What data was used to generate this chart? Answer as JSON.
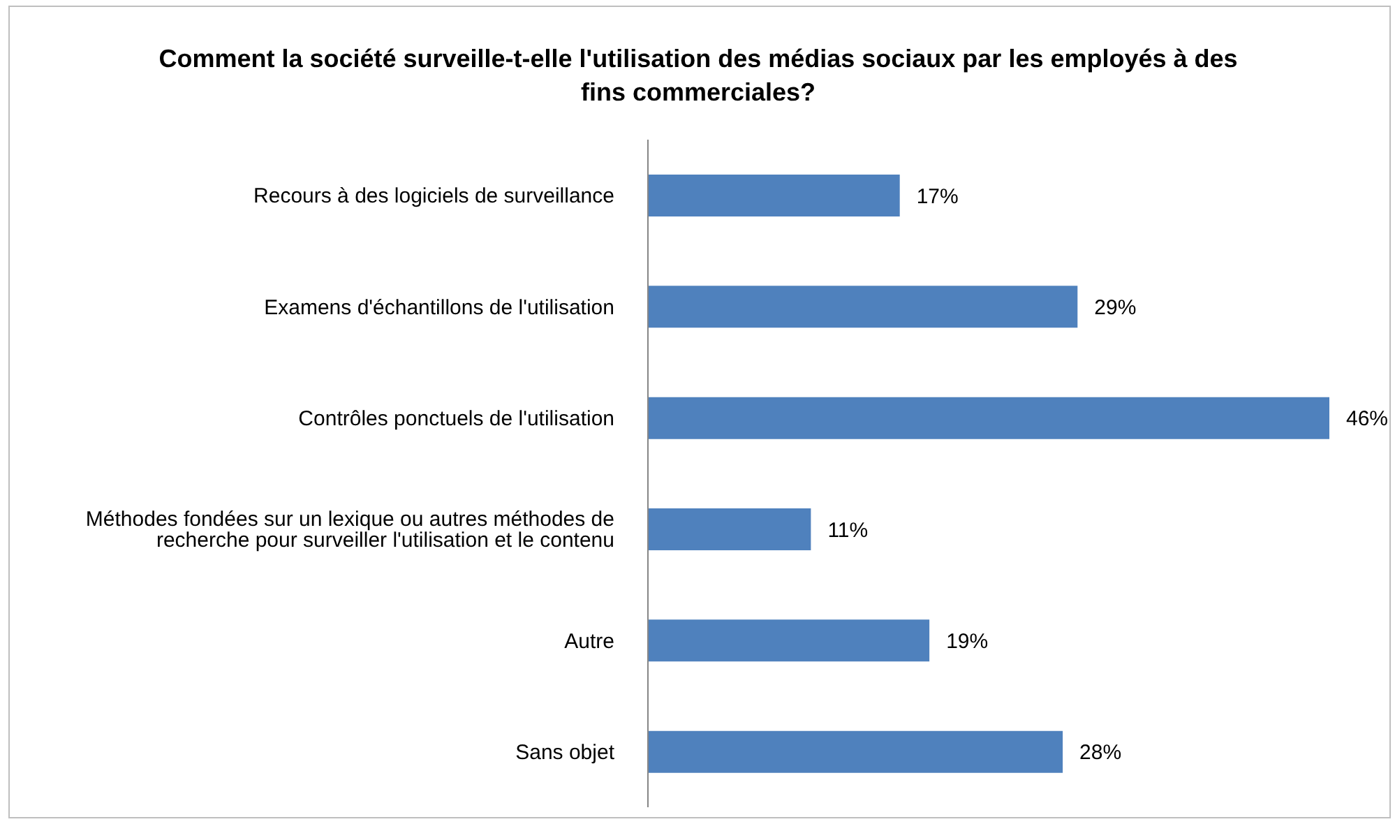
{
  "chart_data": {
    "type": "bar",
    "orientation": "horizontal",
    "title": "Comment la société surveille-t-elle l'utilisation des médias sociaux par les employés à des fins commerciales?",
    "categories": [
      "Recours à des logiciels de surveillance",
      "Examens d'échantillons de l'utilisation",
      "Contrôles ponctuels de l'utilisation",
      "Méthodes fondées sur un lexique ou autres méthodes de recherche pour surveiller l'utilisation et le contenu",
      "Autre",
      "Sans objet"
    ],
    "values": [
      17,
      29,
      46,
      11,
      19,
      28
    ],
    "value_labels": [
      "17%",
      "29%",
      "46%",
      "11%",
      "19%",
      "28%"
    ],
    "color": "#4f81bd"
  }
}
